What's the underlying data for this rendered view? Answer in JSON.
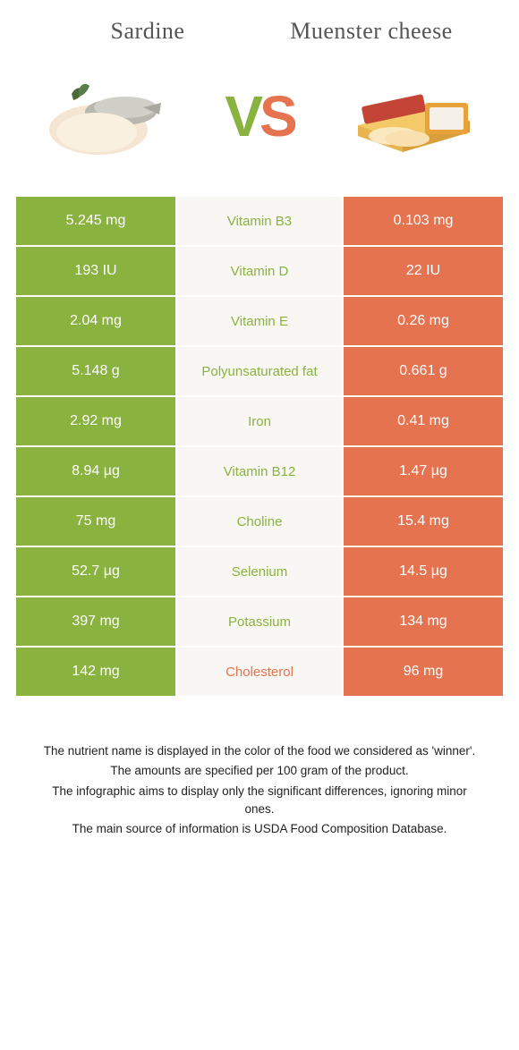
{
  "header": {
    "left_title": "Sardine",
    "right_title": "Muenster cheese",
    "vs_v": "V",
    "vs_s": "S"
  },
  "colors": {
    "left": "#8ab23f",
    "right": "#e67350",
    "row_bg": "#f8f7f3"
  },
  "rows": [
    {
      "left": "5.245 mg",
      "mid": "Vitamin B3",
      "right": "0.103 mg",
      "winner": "left"
    },
    {
      "left": "193 IU",
      "mid": "Vitamin D",
      "right": "22 IU",
      "winner": "left"
    },
    {
      "left": "2.04 mg",
      "mid": "Vitamin E",
      "right": "0.26 mg",
      "winner": "left"
    },
    {
      "left": "5.148 g",
      "mid": "Polyunsaturated fat",
      "right": "0.661 g",
      "winner": "left"
    },
    {
      "left": "2.92 mg",
      "mid": "Iron",
      "right": "0.41 mg",
      "winner": "left"
    },
    {
      "left": "8.94 µg",
      "mid": "Vitamin B12",
      "right": "1.47 µg",
      "winner": "left"
    },
    {
      "left": "75 mg",
      "mid": "Choline",
      "right": "15.4 mg",
      "winner": "left"
    },
    {
      "left": "52.7 µg",
      "mid": "Selenium",
      "right": "14.5 µg",
      "winner": "left"
    },
    {
      "left": "397 mg",
      "mid": "Potassium",
      "right": "134 mg",
      "winner": "left"
    },
    {
      "left": "142 mg",
      "mid": "Cholesterol",
      "right": "96 mg",
      "winner": "right"
    }
  ],
  "footer": {
    "line1": "The nutrient name is displayed in the color of the food we considered as 'winner'.",
    "line2": "The amounts are specified per 100 gram of the product.",
    "line3": "The infographic aims to display only the significant differences, ignoring minor ones.",
    "line4": "The main source of information is USDA Food Composition Database."
  }
}
